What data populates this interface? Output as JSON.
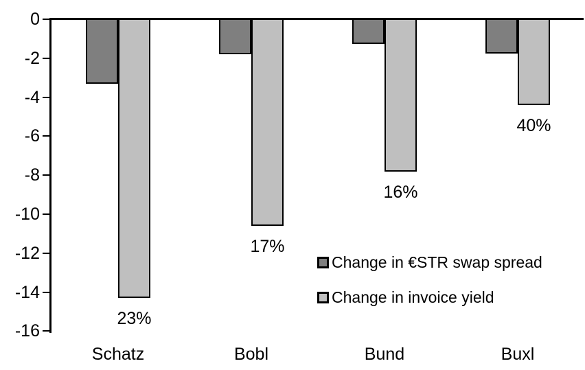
{
  "chart_data": {
    "type": "bar",
    "title": "",
    "categories": [
      "Schatz",
      "Bobl",
      "Bund",
      "Buxl"
    ],
    "series": [
      {
        "name": "Change in €STR swap spread",
        "color": "#7f7f7f",
        "values": [
          -3.3,
          -1.8,
          -1.25,
          -1.75
        ]
      },
      {
        "name": "Change in invoice yield",
        "color": "#bfbfbf",
        "values": [
          -14.3,
          -10.6,
          -7.8,
          -4.4
        ],
        "point_labels": [
          "23%",
          "17%",
          "16%",
          "40%"
        ]
      }
    ],
    "ylim": [
      -16,
      0
    ],
    "yticks": [
      0,
      -2,
      -4,
      -6,
      -8,
      -10,
      -12,
      -14,
      -16
    ],
    "ytick_labels": [
      "0",
      "-2",
      "-4",
      "-6",
      "-8",
      "-10",
      "-12",
      "-14",
      "-16"
    ],
    "xlabel": "",
    "ylabel": "",
    "grid": false,
    "legend_position": "inside-bottom-right",
    "axis_color": "#000000",
    "bar_border_color": "#000000",
    "background_color": "#ffffff"
  }
}
